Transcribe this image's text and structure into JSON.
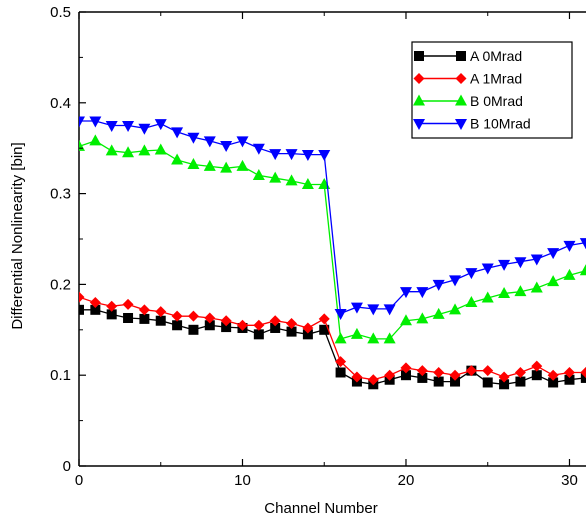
{
  "chart_data": {
    "type": "line",
    "title": "",
    "xlabel": "Channel Number",
    "ylabel": "Differential Nonlinearity [bin]",
    "xlim": [
      0,
      31.5
    ],
    "ylim": [
      0,
      0.5
    ],
    "xticks": [
      0,
      10,
      20,
      30
    ],
    "xtick_labels": [
      "0",
      "10",
      "20",
      "30"
    ],
    "yticks": [
      0,
      0.1,
      0.2,
      0.3,
      0.4,
      0.5
    ],
    "ytick_labels": [
      "0",
      "0.1",
      "0.2",
      "0.3",
      "0.4",
      "0.5"
    ],
    "grid": false,
    "legend_position": "top-right",
    "x": [
      0,
      1,
      2,
      3,
      4,
      5,
      6,
      7,
      8,
      9,
      10,
      11,
      12,
      13,
      14,
      15,
      16,
      17,
      18,
      19,
      20,
      21,
      22,
      23,
      24,
      25,
      26,
      27,
      28,
      29,
      30,
      31
    ],
    "series": [
      {
        "name": "A 0Mrad",
        "color": "#000000",
        "marker": "square",
        "values": [
          0.172,
          0.172,
          0.167,
          0.163,
          0.162,
          0.16,
          0.155,
          0.15,
          0.155,
          0.153,
          0.152,
          0.145,
          0.152,
          0.148,
          0.145,
          0.15,
          0.103,
          0.093,
          0.09,
          0.095,
          0.1,
          0.097,
          0.093,
          0.093,
          0.105,
          0.092,
          0.09,
          0.093,
          0.1,
          0.092,
          0.095,
          0.097
        ]
      },
      {
        "name": "A 1Mrad",
        "color": "#ff0000",
        "marker": "diamond",
        "values": [
          0.186,
          0.18,
          0.176,
          0.178,
          0.172,
          0.17,
          0.165,
          0.165,
          0.163,
          0.16,
          0.155,
          0.155,
          0.16,
          0.157,
          0.152,
          0.162,
          0.115,
          0.098,
          0.095,
          0.1,
          0.108,
          0.105,
          0.103,
          0.1,
          0.105,
          0.105,
          0.098,
          0.103,
          0.11,
          0.1,
          0.103,
          0.103
        ]
      },
      {
        "name": "B 0Mrad",
        "color": "#00ee00",
        "marker": "triangle-up",
        "values": [
          0.352,
          0.358,
          0.347,
          0.345,
          0.347,
          0.348,
          0.337,
          0.332,
          0.33,
          0.328,
          0.33,
          0.32,
          0.317,
          0.314,
          0.31,
          0.31,
          0.14,
          0.145,
          0.14,
          0.14,
          0.16,
          0.162,
          0.167,
          0.172,
          0.18,
          0.185,
          0.19,
          0.192,
          0.196,
          0.203,
          0.21,
          0.215
        ]
      },
      {
        "name": "B 10Mrad",
        "color": "#0000ff",
        "marker": "triangle-down",
        "values": [
          0.38,
          0.38,
          0.375,
          0.375,
          0.372,
          0.377,
          0.368,
          0.362,
          0.358,
          0.353,
          0.358,
          0.35,
          0.344,
          0.344,
          0.343,
          0.343,
          0.168,
          0.175,
          0.173,
          0.173,
          0.192,
          0.192,
          0.2,
          0.205,
          0.213,
          0.218,
          0.222,
          0.225,
          0.228,
          0.235,
          0.243,
          0.246
        ]
      }
    ]
  }
}
